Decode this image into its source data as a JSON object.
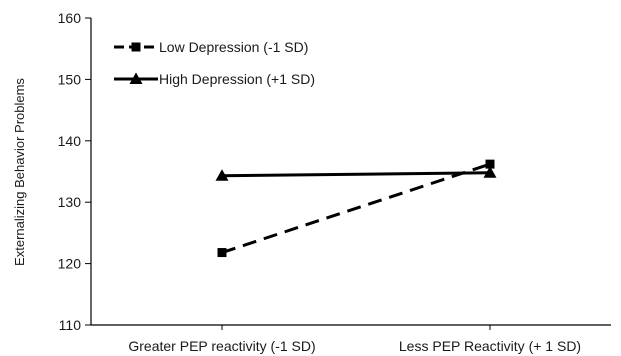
{
  "chart_data": {
    "type": "line",
    "ylabel": "Externalizing Behavior Problems",
    "xlabel": "",
    "categories": [
      "Greater PEP reactivity (-1 SD)",
      "Less PEP Reactivity (+ 1 SD)"
    ],
    "ylim": [
      110,
      160
    ],
    "yticks": [
      110,
      120,
      130,
      140,
      150,
      160
    ],
    "legend_position": "top-left",
    "grid": false,
    "series": [
      {
        "name": "Low  Depression (-1 SD)",
        "values": [
          121.8,
          136.2
        ],
        "line_style": "dashed",
        "marker": "square",
        "color": "#000000"
      },
      {
        "name": "High Depression (+1 SD)",
        "values": [
          134.3,
          134.8
        ],
        "line_style": "solid",
        "marker": "triangle",
        "color": "#000000"
      }
    ]
  }
}
